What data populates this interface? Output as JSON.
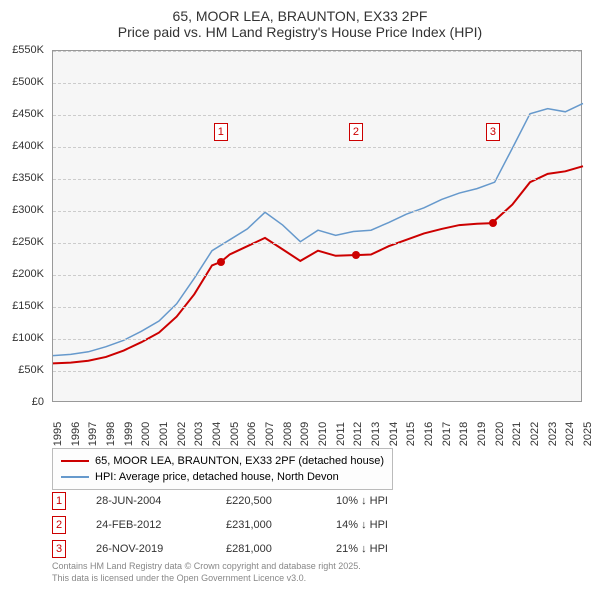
{
  "title": {
    "line1": "65, MOOR LEA, BRAUNTON, EX33 2PF",
    "line2": "Price paid vs. HM Land Registry's House Price Index (HPI)"
  },
  "chart": {
    "type": "line",
    "background_color": "#f6f6f6",
    "border_color": "#999999",
    "grid_color": "#cccccc",
    "title_fontsize": 14,
    "label_fontsize": 11,
    "y_axis": {
      "min": 0,
      "max": 550000,
      "tick_step": 50000,
      "format_prefix": "£",
      "format_suffix": "K",
      "ticks": [
        "£0",
        "£50K",
        "£100K",
        "£150K",
        "£200K",
        "£250K",
        "£300K",
        "£350K",
        "£400K",
        "£450K",
        "£500K",
        "£550K"
      ]
    },
    "x_axis": {
      "min": 1995,
      "max": 2025,
      "tick_step": 1,
      "ticks": [
        "1995",
        "1996",
        "1997",
        "1998",
        "1999",
        "2000",
        "2001",
        "2002",
        "2003",
        "2004",
        "2005",
        "2006",
        "2007",
        "2008",
        "2009",
        "2010",
        "2011",
        "2012",
        "2013",
        "2014",
        "2015",
        "2016",
        "2017",
        "2018",
        "2019",
        "2020",
        "2021",
        "2022",
        "2023",
        "2024",
        "2025"
      ]
    },
    "series": [
      {
        "name": "65, MOOR LEA, BRAUNTON, EX33 2PF (detached house)",
        "color": "#cc0000",
        "line_width": 2,
        "data": [
          [
            1995,
            62000
          ],
          [
            1996,
            63000
          ],
          [
            1997,
            66000
          ],
          [
            1998,
            72000
          ],
          [
            1999,
            82000
          ],
          [
            2000,
            95000
          ],
          [
            2001,
            110000
          ],
          [
            2002,
            135000
          ],
          [
            2003,
            170000
          ],
          [
            2004,
            215000
          ],
          [
            2004.5,
            220500
          ],
          [
            2005,
            232000
          ],
          [
            2006,
            245000
          ],
          [
            2007,
            258000
          ],
          [
            2008,
            240000
          ],
          [
            2009,
            222000
          ],
          [
            2010,
            238000
          ],
          [
            2011,
            230000
          ],
          [
            2012,
            231000
          ],
          [
            2012.15,
            231000
          ],
          [
            2013,
            232000
          ],
          [
            2014,
            245000
          ],
          [
            2015,
            255000
          ],
          [
            2016,
            265000
          ],
          [
            2017,
            272000
          ],
          [
            2018,
            278000
          ],
          [
            2019,
            280000
          ],
          [
            2019.9,
            281000
          ],
          [
            2020,
            285000
          ],
          [
            2021,
            310000
          ],
          [
            2022,
            345000
          ],
          [
            2023,
            358000
          ],
          [
            2024,
            362000
          ],
          [
            2025,
            370000
          ]
        ]
      },
      {
        "name": "HPI: Average price, detached house, North Devon",
        "color": "#6699cc",
        "line_width": 1.5,
        "data": [
          [
            1995,
            74000
          ],
          [
            1996,
            76000
          ],
          [
            1997,
            80000
          ],
          [
            1998,
            88000
          ],
          [
            1999,
            98000
          ],
          [
            2000,
            112000
          ],
          [
            2001,
            128000
          ],
          [
            2002,
            155000
          ],
          [
            2003,
            195000
          ],
          [
            2004,
            238000
          ],
          [
            2005,
            255000
          ],
          [
            2006,
            272000
          ],
          [
            2007,
            298000
          ],
          [
            2008,
            278000
          ],
          [
            2009,
            252000
          ],
          [
            2010,
            270000
          ],
          [
            2011,
            262000
          ],
          [
            2012,
            268000
          ],
          [
            2013,
            270000
          ],
          [
            2014,
            282000
          ],
          [
            2015,
            295000
          ],
          [
            2016,
            305000
          ],
          [
            2017,
            318000
          ],
          [
            2018,
            328000
          ],
          [
            2019,
            335000
          ],
          [
            2020,
            345000
          ],
          [
            2021,
            398000
          ],
          [
            2022,
            452000
          ],
          [
            2023,
            460000
          ],
          [
            2024,
            455000
          ],
          [
            2025,
            468000
          ]
        ]
      }
    ],
    "sale_markers": [
      {
        "num": "1",
        "year": 2004.5,
        "price": 220500,
        "marker_y": 438000,
        "color": "#cc0000"
      },
      {
        "num": "2",
        "year": 2012.15,
        "price": 231000,
        "marker_y": 438000,
        "color": "#cc0000"
      },
      {
        "num": "3",
        "year": 2019.9,
        "price": 281000,
        "marker_y": 438000,
        "color": "#cc0000"
      }
    ]
  },
  "legend": {
    "items": [
      {
        "color": "#cc0000",
        "width": 2,
        "label": "65, MOOR LEA, BRAUNTON, EX33 2PF (detached house)"
      },
      {
        "color": "#6699cc",
        "width": 1.5,
        "label": "HPI: Average price, detached house, North Devon"
      }
    ]
  },
  "sales": [
    {
      "num": "1",
      "date": "28-JUN-2004",
      "price": "£220,500",
      "diff": "10% ↓ HPI"
    },
    {
      "num": "2",
      "date": "24-FEB-2012",
      "price": "£231,000",
      "diff": "14% ↓ HPI"
    },
    {
      "num": "3",
      "date": "26-NOV-2019",
      "price": "£281,000",
      "diff": "21% ↓ HPI"
    }
  ],
  "attribution": {
    "line1": "Contains HM Land Registry data © Crown copyright and database right 2025.",
    "line2": "This data is licensed under the Open Government Licence v3.0."
  }
}
